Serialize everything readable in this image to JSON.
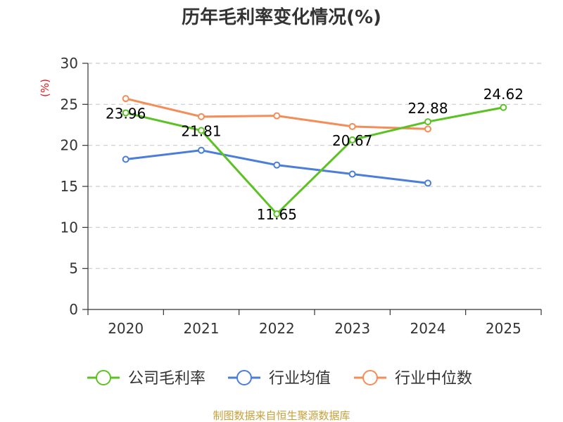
{
  "chart_data": {
    "type": "line",
    "title": "历年毛利率变化情况(%)",
    "ylabel": "(%)",
    "ylim": [
      0,
      30
    ],
    "yticks": [
      0,
      5,
      10,
      15,
      20,
      25,
      30
    ],
    "categories": [
      "2020",
      "2021",
      "2022",
      "2023",
      "2024",
      "2025"
    ],
    "grid": true,
    "legend_position": "bottom",
    "series": [
      {
        "name": "公司毛利率",
        "color": "#5cc224",
        "values": [
          23.96,
          21.81,
          11.65,
          20.67,
          22.88,
          24.62
        ],
        "labels": [
          "23.96",
          "21.81",
          "11.65",
          "20.67",
          "22.88",
          "24.62"
        ]
      },
      {
        "name": "行业均值",
        "color": "#4a7ed9",
        "values": [
          18.3,
          19.4,
          17.6,
          16.5,
          15.4,
          null
        ]
      },
      {
        "name": "行业中位数",
        "color": "#f48d57",
        "values": [
          25.7,
          23.5,
          23.6,
          22.3,
          22.0,
          null
        ]
      }
    ]
  },
  "footer": {
    "source": "制图数据来自恒生聚源数据库"
  }
}
